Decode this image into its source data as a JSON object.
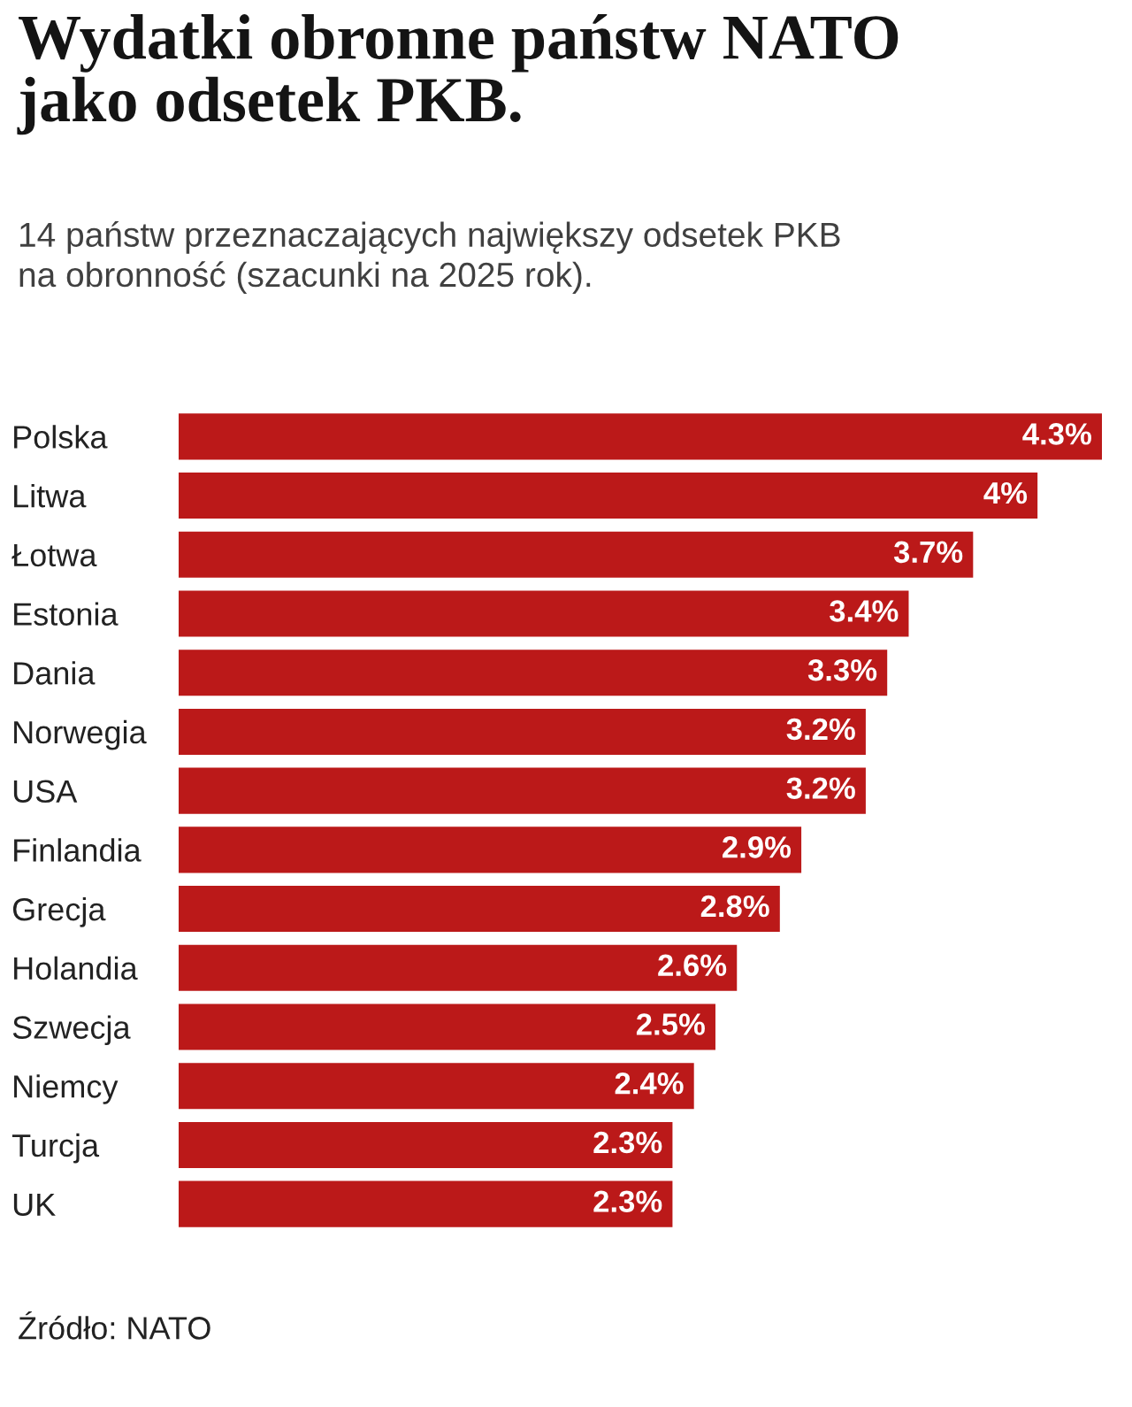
{
  "chart_data": {
    "type": "bar",
    "orientation": "horizontal",
    "title": "Wydatki obronne państw NATO\njako odsetek PKB.",
    "subtitle": "14 państw przeznaczających największy odsetek PKB\nna obronność (szacunki na 2025 rok).",
    "categories": [
      "Polska",
      "Litwa",
      "Łotwa",
      "Estonia",
      "Dania",
      "Norwegia",
      "USA",
      "Finlandia",
      "Grecja",
      "Holandia",
      "Szwecja",
      "Niemcy",
      "Turcja",
      "UK"
    ],
    "values": [
      4.3,
      4,
      3.7,
      3.4,
      3.3,
      3.2,
      3.2,
      2.9,
      2.8,
      2.6,
      2.5,
      2.4,
      2.3,
      2.3
    ],
    "value_labels": [
      "4.3%",
      "4%",
      "3.7%",
      "3.4%",
      "3.3%",
      "3.2%",
      "3.2%",
      "2.9%",
      "2.8%",
      "2.6%",
      "2.5%",
      "2.4%",
      "2.3%",
      "2.3%"
    ],
    "color": "#bb1919",
    "xlim": [
      0,
      4.3
    ],
    "tick_labels": "y",
    "grid": false,
    "legend": false,
    "annotations": [
      "Źródło: NATO"
    ]
  }
}
